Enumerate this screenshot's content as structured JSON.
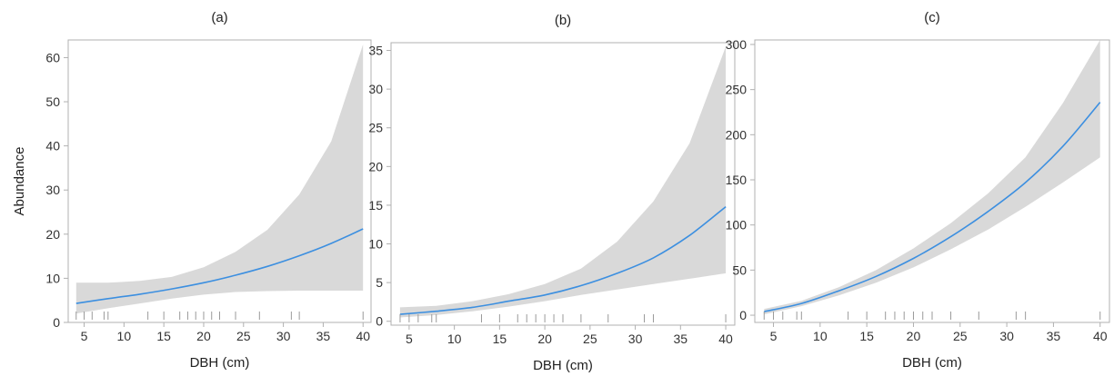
{
  "colors": {
    "line": "#3c8fe0",
    "ribbon": "#d9d9d9",
    "rug": "#9a9a9a",
    "frame": "#b0b0b0",
    "text": "#333333"
  },
  "chart_data": [
    {
      "type": "line",
      "title": "(a)",
      "xlabel": "DBH (cm)",
      "ylabel": "Abundance",
      "xlim": [
        3,
        41
      ],
      "ylim": [
        0,
        64
      ],
      "xticks": [
        5,
        10,
        15,
        20,
        25,
        30,
        35,
        40
      ],
      "yticks": [
        0,
        10,
        20,
        30,
        40,
        50,
        60
      ],
      "series": [
        {
          "x": [
            4,
            8,
            12,
            16,
            20,
            24,
            28,
            32,
            36,
            40
          ],
          "y": [
            4.3,
            5.4,
            6.4,
            7.6,
            9.0,
            10.7,
            12.7,
            15.1,
            17.9,
            21.2
          ],
          "lower": [
            2.0,
            3.2,
            4.3,
            5.4,
            6.3,
            6.9,
            7.1,
            7.2,
            7.2,
            7.2
          ],
          "upper": [
            9.0,
            9.0,
            9.4,
            10.3,
            12.5,
            16.0,
            21.0,
            29.0,
            41.0,
            63.0
          ]
        }
      ],
      "rug": [
        4,
        5,
        6,
        7.5,
        8,
        13,
        15,
        17,
        18,
        19,
        20,
        21,
        22,
        24,
        27,
        31,
        32,
        40
      ]
    },
    {
      "type": "line",
      "title": "(b)",
      "xlabel": "DBH (cm)",
      "ylabel": "",
      "xlim": [
        3,
        41
      ],
      "ylim": [
        -0.5,
        36
      ],
      "xticks": [
        5,
        10,
        15,
        20,
        25,
        30,
        35,
        40
      ],
      "yticks": [
        0,
        5,
        10,
        15,
        20,
        25,
        30,
        35
      ],
      "series": [
        {
          "x": [
            4,
            8,
            12,
            16,
            20,
            24,
            28,
            32,
            36,
            40
          ],
          "y": [
            0.9,
            1.3,
            1.8,
            2.6,
            3.4,
            4.6,
            6.2,
            8.2,
            11.1,
            14.8
          ],
          "lower": [
            0.5,
            0.8,
            1.3,
            1.9,
            2.6,
            3.4,
            4.1,
            4.8,
            5.5,
            6.2
          ],
          "upper": [
            1.8,
            2.0,
            2.6,
            3.5,
            4.8,
            6.8,
            10.3,
            15.5,
            23.0,
            35.5
          ]
        }
      ],
      "rug": [
        4,
        5,
        6,
        7.5,
        8,
        13,
        15,
        17,
        18,
        19,
        20,
        21,
        22,
        24,
        27,
        31,
        32,
        40
      ]
    },
    {
      "type": "line",
      "title": "(c)",
      "xlabel": "DBH (cm)",
      "ylabel": "",
      "xlim": [
        3,
        41
      ],
      "ylim": [
        -8,
        305
      ],
      "xticks": [
        5,
        10,
        15,
        20,
        25,
        30,
        35,
        40
      ],
      "yticks": [
        0,
        50,
        100,
        150,
        200,
        250,
        300
      ],
      "series": [
        {
          "x": [
            4,
            8,
            12,
            16,
            20,
            24,
            28,
            32,
            36,
            40
          ],
          "y": [
            4,
            13,
            27,
            43,
            63,
            87,
            115,
            147,
            187,
            236
          ],
          "lower": [
            1,
            10,
            22,
            36,
            53,
            73,
            95,
            120,
            147,
            175
          ],
          "upper": [
            7,
            16,
            31,
            50,
            74,
            102,
            135,
            175,
            235,
            305
          ]
        }
      ],
      "rug": [
        4,
        5,
        6,
        7.5,
        8,
        13,
        15,
        17,
        18,
        19,
        20,
        21,
        22,
        24,
        27,
        31,
        32,
        40
      ]
    }
  ]
}
